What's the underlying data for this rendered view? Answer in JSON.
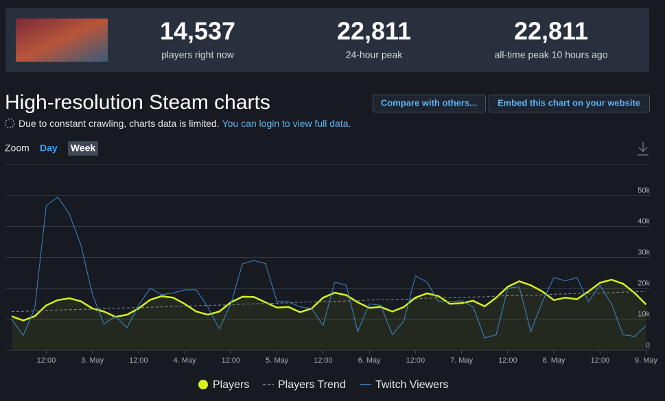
{
  "header": {
    "stats": [
      {
        "value": "14,537",
        "label": "players right now"
      },
      {
        "value": "22,811",
        "label": "24-hour peak"
      },
      {
        "value": "22,811",
        "label": "all-time peak 10 hours ago"
      }
    ]
  },
  "section": {
    "title": "High-resolution Steam charts",
    "buttons": [
      "Compare with others...",
      "Embed this chart on your website"
    ],
    "notice": "Due to constant crawling, charts data is limited.",
    "notice_link": "You can login to view full data.",
    "zoom_label": "Zoom",
    "zoom_options": [
      "Day",
      "Week"
    ]
  },
  "chart_data": {
    "type": "line",
    "categories": [
      null,
      null,
      null,
      "12:00",
      null,
      null,
      null,
      "3. May",
      null,
      null,
      null,
      "12:00",
      null,
      null,
      null,
      "4. May",
      null,
      null,
      null,
      "12:00",
      null,
      null,
      null,
      "5. May",
      null,
      null,
      null,
      "12:00",
      null,
      null,
      null,
      "6. May",
      null,
      null,
      null,
      "12:00",
      null,
      null,
      null,
      "7. May",
      null,
      null,
      null,
      "12:00",
      null,
      null,
      null,
      "8. May",
      null,
      null,
      null,
      "12:00",
      null,
      null,
      null,
      "9. May"
    ],
    "series": [
      {
        "name": "Players",
        "color": "#d7f21e",
        "area": true,
        "values": [
          11000,
          9600,
          11000,
          14500,
          16200,
          16800,
          15800,
          13500,
          12500,
          10800,
          11500,
          13500,
          16300,
          17500,
          17000,
          15000,
          12500,
          11500,
          12500,
          15500,
          17300,
          17200,
          15500,
          13800,
          14000,
          12300,
          13500,
          17000,
          18600,
          17800,
          15500,
          13700,
          14000,
          12500,
          14000,
          17000,
          18400,
          17500,
          15000,
          15200,
          16000,
          14200,
          17000,
          20500,
          22300,
          21000,
          19000,
          16200,
          17000,
          16500,
          19000,
          21800,
          22800,
          21500,
          18500,
          14800
        ]
      },
      {
        "name": "Players Trend",
        "color": "#8a8f98",
        "dashed": true,
        "values": [
          12500,
          12600,
          12700,
          12900,
          13000,
          13100,
          13200,
          13300,
          13400,
          13600,
          13700,
          13800,
          13900,
          14000,
          14200,
          14300,
          14400,
          14500,
          14600,
          14700,
          14900,
          15000,
          15100,
          15200,
          15300,
          15500,
          15600,
          15700,
          15800,
          15900,
          16000,
          16200,
          16300,
          16400,
          16500,
          16600,
          16800,
          16900,
          17000,
          17100,
          17200,
          17300,
          17500,
          17600,
          17700,
          17800,
          17900,
          18100,
          18200,
          18300,
          18400,
          18500,
          18600,
          18800,
          18900,
          19000
        ]
      },
      {
        "name": "Twitch Viewers",
        "color": "#3b8ad6",
        "values": [
          10000,
          4800,
          13500,
          46700,
          49500,
          44000,
          34000,
          18000,
          8500,
          11000,
          7300,
          14500,
          20000,
          18000,
          18500,
          19500,
          19500,
          14000,
          6900,
          15000,
          27900,
          29000,
          28000,
          15700,
          15700,
          14000,
          13500,
          8000,
          22000,
          21000,
          6000,
          15000,
          14500,
          5000,
          9500,
          24000,
          22000,
          15700,
          15700,
          16000,
          14000,
          4000,
          5000,
          20000,
          20500,
          6000,
          15700,
          23500,
          22400,
          23500,
          15700,
          21000,
          15000,
          5000,
          4500,
          8000
        ]
      }
    ],
    "ylim": [
      0,
      60000
    ],
    "yticks": [
      0,
      {
        "value": 10000,
        "label": "10k"
      },
      {
        "value": 20000,
        "label": "20k"
      },
      {
        "value": 30000,
        "label": "30k"
      },
      {
        "value": 40000,
        "label": "40k"
      },
      {
        "value": 50000,
        "label": "50k"
      }
    ],
    "grid": true,
    "legend": "bottom"
  }
}
